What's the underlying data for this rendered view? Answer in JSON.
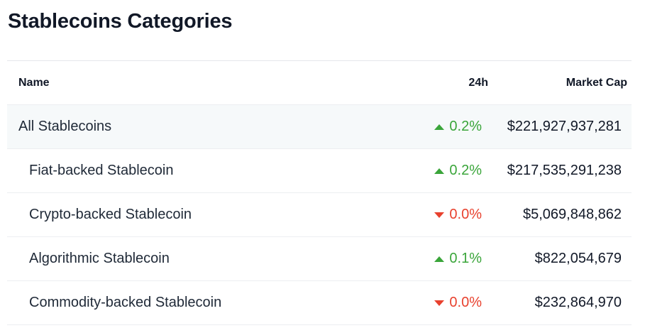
{
  "header": {
    "title": "Stablecoins Categories"
  },
  "table": {
    "columns": [
      "Name",
      "24h",
      "Market Cap"
    ],
    "rows": [
      {
        "name": "All Stablecoins",
        "change": "0.2%",
        "trend": "up",
        "market_cap": "$221,927,937,281",
        "level": 0
      },
      {
        "name": "Fiat-backed Stablecoin",
        "change": "0.2%",
        "trend": "up",
        "market_cap": "$217,535,291,238",
        "level": 1
      },
      {
        "name": "Crypto-backed Stablecoin",
        "change": "0.0%",
        "trend": "down",
        "market_cap": "$5,069,848,862",
        "level": 1
      },
      {
        "name": "Algorithmic Stablecoin",
        "change": "0.1%",
        "trend": "up",
        "market_cap": "$822,054,679",
        "level": 1
      },
      {
        "name": "Commodity-backed Stablecoin",
        "change": "0.0%",
        "trend": "down",
        "market_cap": "$232,864,970",
        "level": 1
      }
    ]
  }
}
